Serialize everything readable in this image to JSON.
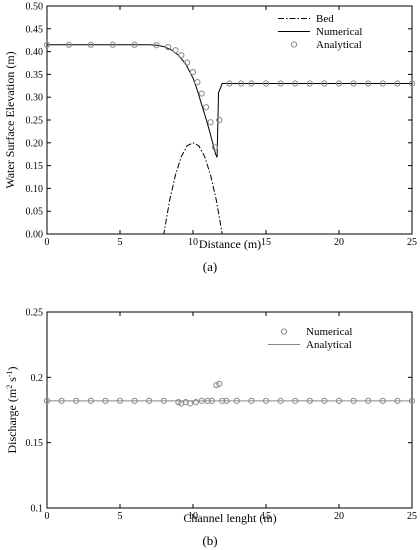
{
  "chart_data": [
    {
      "type": "line",
      "panel_label": "(a)",
      "xlabel": "Distance (m)",
      "ylabel": "Water Surface Elevation (m)",
      "xlim": [
        0,
        25
      ],
      "ylim": [
        0,
        0.5
      ],
      "xticks": [
        0,
        5,
        10,
        15,
        20,
        25
      ],
      "xtick_labels": [
        "0",
        "5",
        "10",
        "15",
        "20",
        "25"
      ],
      "yticks": [
        0,
        0.05,
        0.1,
        0.15,
        0.2,
        0.25,
        0.3,
        0.35,
        0.4,
        0.45,
        0.5
      ],
      "ytick_labels": [
        "0.00",
        "0.05",
        "0.10",
        "0.15",
        "0.20",
        "0.25",
        "0.30",
        "0.35",
        "0.40",
        "0.45",
        "0.50"
      ],
      "legend_position": "top-right",
      "series": [
        {
          "name": "Bed",
          "style": "dash-dot",
          "color": "#000000",
          "x": [
            0,
            8,
            8.4,
            8.8,
            9.2,
            9.6,
            10,
            10.4,
            10.8,
            11.2,
            11.6,
            12,
            25
          ],
          "y": [
            0,
            0,
            0.0736,
            0.1296,
            0.1696,
            0.1936,
            0.2,
            0.1936,
            0.1696,
            0.1296,
            0.0736,
            0,
            0
          ]
        },
        {
          "name": "Numerical",
          "style": "solid",
          "color": "#000000",
          "x": [
            0,
            2,
            4,
            6,
            7,
            7.5,
            8,
            8.5,
            9,
            9.5,
            10,
            10.3,
            10.6,
            10.9,
            11.2,
            11.4,
            11.55,
            11.65,
            11.75,
            12,
            13,
            15,
            20,
            25
          ],
          "y": [
            0.415,
            0.415,
            0.415,
            0.415,
            0.415,
            0.414,
            0.411,
            0.404,
            0.392,
            0.373,
            0.342,
            0.315,
            0.283,
            0.252,
            0.218,
            0.193,
            0.175,
            0.168,
            0.31,
            0.33,
            0.33,
            0.33,
            0.33,
            0.33
          ]
        },
        {
          "name": "Analytical",
          "style": "marker",
          "color": "#888888",
          "x": [
            0,
            1.5,
            3,
            4.5,
            6,
            7.5,
            8.3,
            8.8,
            9.2,
            9.6,
            10,
            10.3,
            10.6,
            10.9,
            11.2,
            11.5,
            11.8,
            12.5,
            13.3,
            14,
            15,
            16,
            17,
            18,
            19,
            20,
            21,
            22,
            23,
            24,
            25
          ],
          "y": [
            0.415,
            0.415,
            0.415,
            0.415,
            0.415,
            0.414,
            0.41,
            0.403,
            0.392,
            0.376,
            0.355,
            0.333,
            0.308,
            0.278,
            0.245,
            0.19,
            0.25,
            0.33,
            0.33,
            0.33,
            0.33,
            0.33,
            0.33,
            0.33,
            0.33,
            0.33,
            0.33,
            0.33,
            0.33,
            0.33,
            0.33
          ]
        }
      ]
    },
    {
      "type": "scatter",
      "panel_label": "(b)",
      "xlabel": "Channel lenght (m)",
      "ylabel_main": "Discharge (m",
      "ylabel_sup1": "2",
      "ylabel_mid": " s",
      "ylabel_sup2": "-1",
      "ylabel_end": ")",
      "xlim": [
        0,
        25
      ],
      "ylim": [
        0.1,
        0.25
      ],
      "xticks": [
        0,
        5,
        10,
        15,
        20,
        25
      ],
      "xtick_labels": [
        "0",
        "5",
        "10",
        "15",
        "20",
        "25"
      ],
      "yticks": [
        0.1,
        0.15,
        0.2,
        0.25
      ],
      "ytick_labels": [
        "0.1",
        "0.15",
        "0.2",
        "0.25"
      ],
      "legend_position": "top-right",
      "series": [
        {
          "name": "Numerical",
          "style": "marker",
          "color": "#888888",
          "x": [
            0,
            1,
            2,
            3,
            4,
            5,
            6,
            7,
            8,
            9,
            9.2,
            9.5,
            9.8,
            10.2,
            10.6,
            11,
            11.3,
            11.6,
            11.8,
            12,
            12.3,
            13,
            14,
            15,
            16,
            17,
            18,
            19,
            20,
            21,
            22,
            23,
            24,
            25
          ],
          "y": [
            0.182,
            0.182,
            0.182,
            0.182,
            0.182,
            0.182,
            0.182,
            0.182,
            0.182,
            0.181,
            0.18,
            0.181,
            0.18,
            0.181,
            0.182,
            0.182,
            0.182,
            0.194,
            0.195,
            0.182,
            0.182,
            0.182,
            0.182,
            0.182,
            0.182,
            0.182,
            0.182,
            0.182,
            0.182,
            0.182,
            0.182,
            0.182,
            0.182,
            0.182
          ]
        },
        {
          "name": "Analytical",
          "style": "solid",
          "color": "#888888",
          "x": [
            0,
            25
          ],
          "y": [
            0.182,
            0.182
          ]
        }
      ]
    }
  ]
}
